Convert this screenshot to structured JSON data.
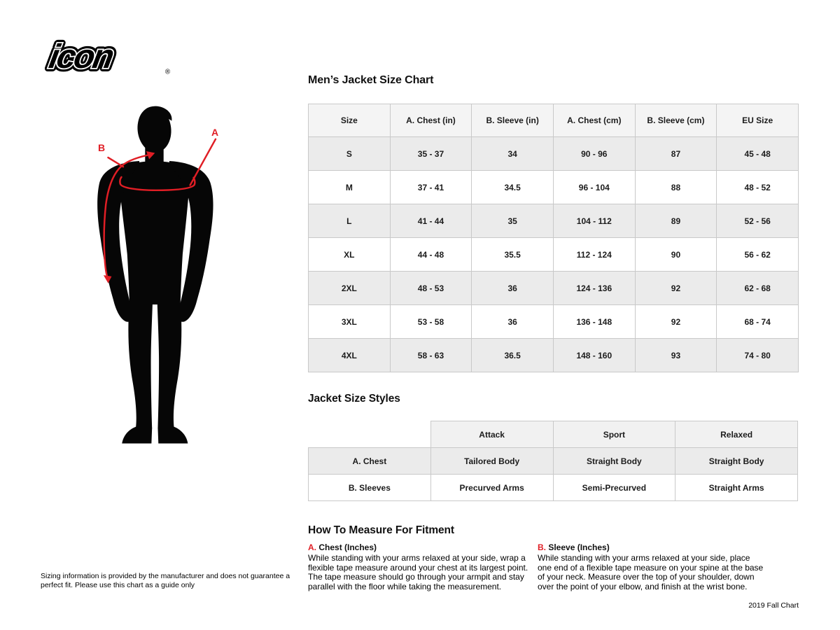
{
  "brand": {
    "logo_text": "icon",
    "registered_mark": "®"
  },
  "figure": {
    "label_a": "A",
    "label_b": "B"
  },
  "size_chart": {
    "title": "Men’s Jacket Size Chart",
    "columns": [
      "Size",
      "A. Chest (in)",
      "B. Sleeve (in)",
      "A. Chest (cm)",
      "B. Sleeve (cm)",
      "EU Size"
    ],
    "rows": [
      [
        "S",
        "35 - 37",
        "34",
        "90 - 96",
        "87",
        "45 - 48"
      ],
      [
        "M",
        "37 - 41",
        "34.5",
        "96 - 104",
        "88",
        "48 - 52"
      ],
      [
        "L",
        "41 - 44",
        "35",
        "104 - 112",
        "89",
        "52 - 56"
      ],
      [
        "XL",
        "44 - 48",
        "35.5",
        "112 - 124",
        "90",
        "56 - 62"
      ],
      [
        "2XL",
        "48 - 53",
        "36",
        "124 - 136",
        "92",
        "62 - 68"
      ],
      [
        "3XL",
        "53 - 58",
        "36",
        "136 - 148",
        "92",
        "68 - 74"
      ],
      [
        "4XL",
        "58 - 63",
        "36.5",
        "148 - 160",
        "93",
        "74 - 80"
      ]
    ]
  },
  "styles_chart": {
    "title": "Jacket Size Styles",
    "columns": [
      "",
      "Attack",
      "Sport",
      "Relaxed"
    ],
    "rows": [
      [
        "A. Chest",
        "Tailored Body",
        "Straight Body",
        "Straight Body"
      ],
      [
        "B. Sleeves",
        "Precurved Arms",
        "Semi-Precurved",
        "Straight Arms"
      ]
    ]
  },
  "measure": {
    "title": "How To Measure For Fitment",
    "items": [
      {
        "letter": "A.",
        "label": "Chest (Inches)",
        "text": "While standing with your arms relaxed at your side, wrap a flexible tape measure around your chest at its largest point. The tape measure should go through your armpit and stay parallel with the floor while taking the measurement."
      },
      {
        "letter": "B.",
        "label": "Sleeve (Inches)",
        "text": "While standing with your arms relaxed at your side, place one end of a flexible tape measure on your spine at the base of your neck. Measure over the top of your shoulder, down over the point of your elbow, and finish at the wrist bone."
      }
    ]
  },
  "footer": {
    "disclaimer": "Sizing information is provided by the manufacturer and does not guarantee a perfect fit. Please use this chart as a guide only",
    "chart_version": "2019 Fall Chart"
  },
  "colors": {
    "accent_red": "#e01e25",
    "row_gray": "#ebebeb",
    "border": "#c9c9c9"
  }
}
